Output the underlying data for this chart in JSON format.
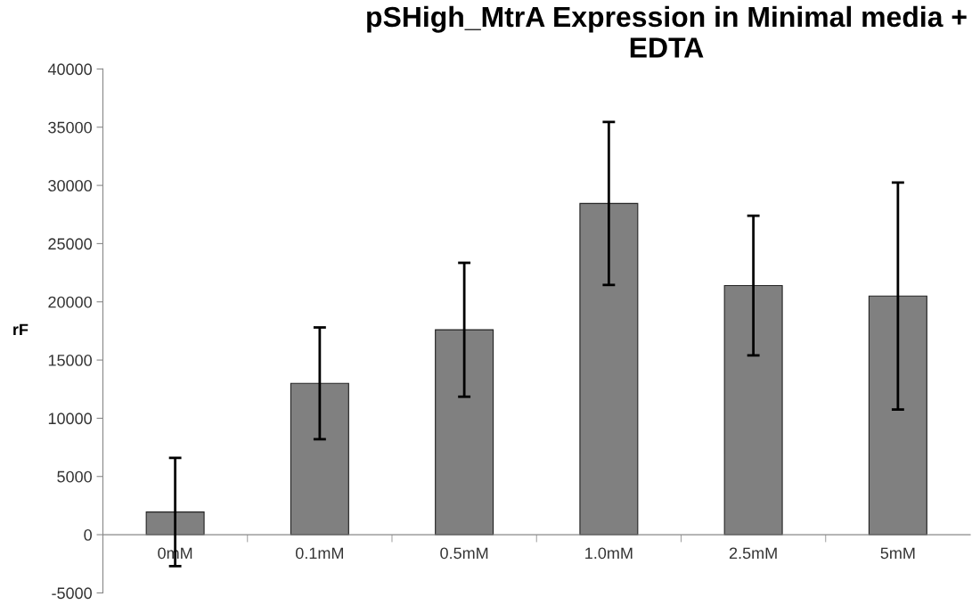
{
  "chart_data": {
    "type": "bar",
    "title": "pSHigh_MtrA Expression in Minimal media + EDTA",
    "ylabel": "rF",
    "categories": [
      "0mM",
      "0.1mM",
      "0.5mM",
      "1.0mM",
      "2.5mM",
      "5mM"
    ],
    "values": [
      1950,
      13000,
      17600,
      28450,
      21400,
      20500
    ],
    "errors": [
      4650,
      4800,
      5750,
      7000,
      6000,
      9750
    ],
    "color": "#808080",
    "ylim": [
      -5000,
      40000
    ],
    "yticks": [
      -5000,
      0,
      5000,
      10000,
      15000,
      20000,
      25000,
      30000,
      35000,
      40000
    ],
    "grid": false,
    "legend": false
  }
}
